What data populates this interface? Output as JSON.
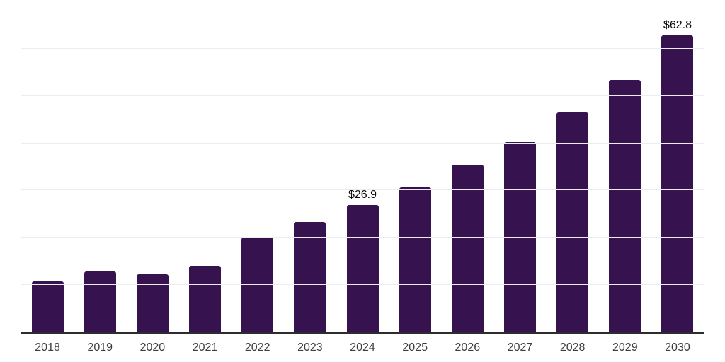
{
  "chart_data": {
    "type": "bar",
    "title": "",
    "xlabel": "",
    "ylabel": "",
    "categories": [
      "2018",
      "2019",
      "2020",
      "2021",
      "2022",
      "2023",
      "2024",
      "2025",
      "2026",
      "2027",
      "2028",
      "2029",
      "2030"
    ],
    "values": [
      10.8,
      12.9,
      12.3,
      14.0,
      20.1,
      23.4,
      26.9,
      30.7,
      35.4,
      40.3,
      46.5,
      53.4,
      62.8
    ],
    "data_labels": [
      "",
      "",
      "",
      "",
      "",
      "",
      "$26.9",
      "",
      "",
      "",
      "",
      "",
      "$62.8"
    ],
    "ylim": [
      0,
      70
    ],
    "gridline_step": 10,
    "grid": "horizontal",
    "legend": "none",
    "colors": {
      "bar": "#36124e",
      "axis_line": "#2d2d2d",
      "gridline": "#ededed",
      "value_label_text": "#0a0a0a",
      "x_label_text": "#3d3d3d",
      "background": "#ffffff"
    }
  }
}
